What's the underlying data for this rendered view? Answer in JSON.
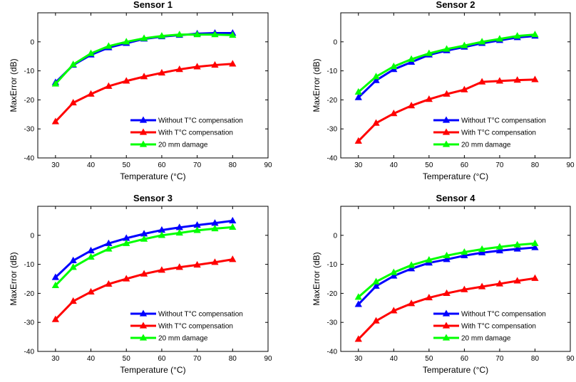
{
  "chart_data": [
    {
      "type": "line",
      "title": "Sensor 1",
      "xlabel": "Temperature (°C)",
      "ylabel": "MaxError (dB)",
      "xlim": [
        25,
        90
      ],
      "ylim": [
        -40,
        10
      ],
      "xticks": [
        30,
        40,
        50,
        60,
        70,
        80,
        90
      ],
      "yticks": [
        -40,
        -30,
        -20,
        -10,
        0
      ],
      "x": [
        30,
        35,
        40,
        45,
        50,
        55,
        60,
        65,
        70,
        75,
        80
      ],
      "legend_position": "bottom-right",
      "series": [
        {
          "name": "Without T°C compensation",
          "color": "#0000ff",
          "values": [
            -14.0,
            -8.0,
            -4.5,
            -2.0,
            -0.5,
            1.0,
            1.8,
            2.3,
            2.8,
            3.0,
            3.0
          ]
        },
        {
          "name": "With T°C compensation",
          "color": "#ff0000",
          "values": [
            -27.5,
            -21.0,
            -18.0,
            -15.3,
            -13.5,
            -12.0,
            -10.7,
            -9.5,
            -8.6,
            -8.0,
            -7.6
          ]
        },
        {
          "name": "20 mm damage",
          "color": "#00ff00",
          "values": [
            -14.5,
            -7.8,
            -4.0,
            -1.5,
            0.0,
            1.2,
            2.0,
            2.5,
            2.5,
            2.5,
            2.3
          ]
        }
      ]
    },
    {
      "type": "line",
      "title": "Sensor 2",
      "xlabel": "Temperature (°C)",
      "ylabel": "MaxError (dB)",
      "xlim": [
        25,
        90
      ],
      "ylim": [
        -40,
        10
      ],
      "xticks": [
        30,
        40,
        50,
        60,
        70,
        80,
        90
      ],
      "yticks": [
        -40,
        -30,
        -20,
        -10,
        0
      ],
      "x": [
        30,
        35,
        40,
        45,
        50,
        55,
        60,
        65,
        70,
        75,
        80
      ],
      "legend_position": "bottom-right",
      "series": [
        {
          "name": "Without T°C compensation",
          "color": "#0000ff",
          "values": [
            -19.2,
            -13.3,
            -9.5,
            -7.0,
            -4.5,
            -3.0,
            -1.8,
            -0.5,
            0.5,
            1.5,
            2.0
          ]
        },
        {
          "name": "With T°C compensation",
          "color": "#ff0000",
          "values": [
            -34.2,
            -28.0,
            -24.7,
            -22.0,
            -19.8,
            -18.0,
            -16.5,
            -13.8,
            -13.5,
            -13.2,
            -13.0
          ]
        },
        {
          "name": "20 mm damage",
          "color": "#00ff00",
          "values": [
            -17.3,
            -12.0,
            -8.5,
            -6.0,
            -4.0,
            -2.5,
            -1.3,
            0.0,
            1.0,
            2.0,
            2.5
          ]
        }
      ]
    },
    {
      "type": "line",
      "title": "Sensor 3",
      "xlabel": "Temperature (°C)",
      "ylabel": "MaxError (dB)",
      "xlim": [
        25,
        90
      ],
      "ylim": [
        -40,
        10
      ],
      "xticks": [
        30,
        40,
        50,
        60,
        70,
        80,
        90
      ],
      "yticks": [
        -40,
        -30,
        -20,
        -10,
        0
      ],
      "x": [
        30,
        35,
        40,
        45,
        50,
        55,
        60,
        65,
        70,
        75,
        80
      ],
      "legend_position": "bottom-right",
      "series": [
        {
          "name": "Without T°C compensation",
          "color": "#0000ff",
          "values": [
            -14.5,
            -8.7,
            -5.3,
            -2.8,
            -1.0,
            0.5,
            1.8,
            2.7,
            3.5,
            4.2,
            5.0
          ]
        },
        {
          "name": "With T°C compensation",
          "color": "#ff0000",
          "values": [
            -29.0,
            -22.7,
            -19.5,
            -16.8,
            -15.0,
            -13.3,
            -12.0,
            -11.0,
            -10.2,
            -9.3,
            -8.3
          ]
        },
        {
          "name": "20 mm damage",
          "color": "#00ff00",
          "values": [
            -17.3,
            -11.0,
            -7.5,
            -4.7,
            -2.8,
            -1.3,
            0.0,
            0.8,
            1.7,
            2.3,
            2.8
          ]
        }
      ]
    },
    {
      "type": "line",
      "title": "Sensor 4",
      "xlabel": "Temperature (°C)",
      "ylabel": "MaxError (dB)",
      "xlim": [
        25,
        90
      ],
      "ylim": [
        -40,
        10
      ],
      "xticks": [
        30,
        40,
        50,
        60,
        70,
        80,
        90
      ],
      "yticks": [
        -40,
        -30,
        -20,
        -10,
        0
      ],
      "x": [
        30,
        35,
        40,
        45,
        50,
        55,
        60,
        65,
        70,
        75,
        80
      ],
      "legend_position": "bottom-right",
      "series": [
        {
          "name": "Without T°C compensation",
          "color": "#0000ff",
          "values": [
            -23.8,
            -17.5,
            -14.0,
            -11.5,
            -9.5,
            -8.3,
            -7.0,
            -6.0,
            -5.3,
            -4.7,
            -4.2
          ]
        },
        {
          "name": "With T°C compensation",
          "color": "#ff0000",
          "values": [
            -35.8,
            -29.5,
            -26.0,
            -23.5,
            -21.5,
            -20.0,
            -18.7,
            -17.7,
            -16.7,
            -15.7,
            -14.8
          ]
        },
        {
          "name": "20 mm damage",
          "color": "#00ff00",
          "values": [
            -21.3,
            -16.0,
            -12.8,
            -10.3,
            -8.5,
            -7.0,
            -5.8,
            -4.8,
            -4.0,
            -3.3,
            -2.8
          ]
        }
      ]
    }
  ]
}
